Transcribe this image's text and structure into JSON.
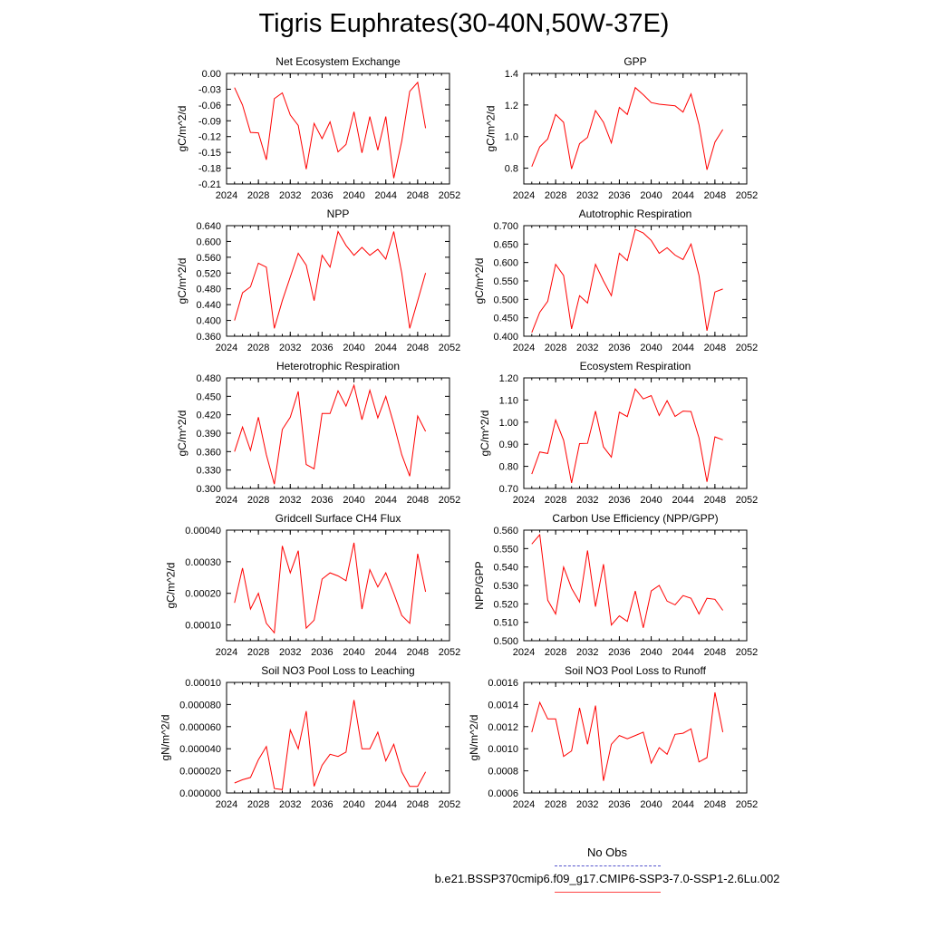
{
  "title": "Tigris Euphrates(30-40N,50W-37E)",
  "legend": {
    "obs_label": "No Obs",
    "run_label": "b.e21.BSSP370cmip6.f09_g17.CMIP6-SSP3-7.0-SSP1-2.6Lu.002",
    "obs_color": "#5555cc",
    "run_color": "#ff0000"
  },
  "chart_data": [
    {
      "type": "line",
      "title": "Net Ecosystem Exchange",
      "ylabel": "gC/m^2/d",
      "xlim": [
        2024,
        2052
      ],
      "ylim": [
        -0.21,
        0.0
      ],
      "xticks": [
        "2024",
        "2028",
        "2032",
        "2036",
        "2040",
        "2044",
        "2048",
        "2052"
      ],
      "yticks": [
        "0.00",
        "-0.03",
        "-0.06",
        "-0.09",
        "-0.12",
        "-0.15",
        "-0.18",
        "-0.21"
      ],
      "x": [
        2025,
        2026,
        2027,
        2028,
        2029,
        2030,
        2031,
        2032,
        2033,
        2034,
        2035,
        2036,
        2037,
        2038,
        2039,
        2040,
        2041,
        2042,
        2043,
        2044,
        2045,
        2046,
        2047,
        2048,
        2049
      ],
      "series": [
        {
          "values": [
            -0.027,
            -0.06,
            -0.112,
            -0.113,
            -0.164,
            -0.048,
            -0.037,
            -0.079,
            -0.099,
            -0.182,
            -0.095,
            -0.124,
            -0.092,
            -0.149,
            -0.135,
            -0.073,
            -0.151,
            -0.082,
            -0.146,
            -0.082,
            -0.199,
            -0.129,
            -0.034,
            -0.017,
            -0.104
          ]
        }
      ]
    },
    {
      "type": "line",
      "title": "GPP",
      "ylabel": "gC/m^2/d",
      "xlim": [
        2024,
        2052
      ],
      "ylim": [
        0.7,
        1.4
      ],
      "xticks": [
        "2024",
        "2028",
        "2032",
        "2036",
        "2040",
        "2044",
        "2048",
        "2052"
      ],
      "yticks": [
        "1.4",
        "1.2",
        "1.0",
        "0.8"
      ],
      "x": [
        2025,
        2026,
        2027,
        2028,
        2029,
        2030,
        2031,
        2032,
        2033,
        2034,
        2035,
        2036,
        2037,
        2038,
        2039,
        2040,
        2041,
        2042,
        2043,
        2044,
        2045,
        2046,
        2047,
        2048,
        2049
      ],
      "series": [
        {
          "values": [
            0.81,
            0.935,
            0.985,
            1.14,
            1.09,
            0.795,
            0.955,
            0.995,
            1.165,
            1.09,
            0.96,
            1.185,
            1.14,
            1.31,
            1.265,
            1.215,
            1.205,
            1.2,
            1.195,
            1.155,
            1.27,
            1.075,
            0.79,
            0.965,
            1.045
          ]
        }
      ]
    },
    {
      "type": "line",
      "title": "NPP",
      "ylabel": "gC/m^2/d",
      "xlim": [
        2024,
        2052
      ],
      "ylim": [
        0.36,
        0.64
      ],
      "xticks": [
        "2024",
        "2028",
        "2032",
        "2036",
        "2040",
        "2044",
        "2048",
        "2052"
      ],
      "yticks": [
        "0.640",
        "0.600",
        "0.560",
        "0.520",
        "0.480",
        "0.440",
        "0.400",
        "0.360"
      ],
      "x": [
        2025,
        2026,
        2027,
        2028,
        2029,
        2030,
        2031,
        2032,
        2033,
        2034,
        2035,
        2036,
        2037,
        2038,
        2039,
        2040,
        2041,
        2042,
        2043,
        2044,
        2045,
        2046,
        2047,
        2048,
        2049
      ],
      "series": [
        {
          "values": [
            0.4,
            0.47,
            0.485,
            0.545,
            0.535,
            0.38,
            0.45,
            0.51,
            0.57,
            0.54,
            0.45,
            0.565,
            0.535,
            0.625,
            0.59,
            0.565,
            0.585,
            0.565,
            0.58,
            0.555,
            0.625,
            0.52,
            0.38,
            0.45,
            0.52
          ]
        }
      ]
    },
    {
      "type": "line",
      "title": "Autotrophic Respiration",
      "ylabel": "gC/m^2/d",
      "xlim": [
        2024,
        2052
      ],
      "ylim": [
        0.4,
        0.7
      ],
      "xticks": [
        "2024",
        "2028",
        "2032",
        "2036",
        "2040",
        "2044",
        "2048",
        "2052"
      ],
      "yticks": [
        "0.700",
        "0.650",
        "0.600",
        "0.550",
        "0.500",
        "0.450",
        "0.400"
      ],
      "x": [
        2025,
        2026,
        2027,
        2028,
        2029,
        2030,
        2031,
        2032,
        2033,
        2034,
        2035,
        2036,
        2037,
        2038,
        2039,
        2040,
        2041,
        2042,
        2043,
        2044,
        2045,
        2046,
        2047,
        2048,
        2049
      ],
      "series": [
        {
          "values": [
            0.41,
            0.465,
            0.495,
            0.595,
            0.565,
            0.42,
            0.51,
            0.49,
            0.595,
            0.55,
            0.51,
            0.625,
            0.605,
            0.69,
            0.68,
            0.66,
            0.625,
            0.64,
            0.62,
            0.608,
            0.65,
            0.565,
            0.415,
            0.52,
            0.528
          ]
        }
      ]
    },
    {
      "type": "line",
      "title": "Heterotrophic Respiration",
      "ylabel": "gC/m^2/d",
      "xlim": [
        2024,
        2052
      ],
      "ylim": [
        0.3,
        0.48
      ],
      "xticks": [
        "2024",
        "2028",
        "2032",
        "2036",
        "2040",
        "2044",
        "2048",
        "2052"
      ],
      "yticks": [
        "0.480",
        "0.450",
        "0.420",
        "0.390",
        "0.360",
        "0.330",
        "0.300"
      ],
      "x": [
        2025,
        2026,
        2027,
        2028,
        2029,
        2030,
        2031,
        2032,
        2033,
        2034,
        2035,
        2036,
        2037,
        2038,
        2039,
        2040,
        2041,
        2042,
        2043,
        2044,
        2045,
        2046,
        2047,
        2048,
        2049
      ],
      "series": [
        {
          "values": [
            0.36,
            0.4,
            0.362,
            0.416,
            0.355,
            0.307,
            0.396,
            0.416,
            0.458,
            0.339,
            0.332,
            0.422,
            0.422,
            0.459,
            0.434,
            0.468,
            0.412,
            0.46,
            0.415,
            0.45,
            0.405,
            0.355,
            0.32,
            0.418,
            0.393
          ]
        }
      ]
    },
    {
      "type": "line",
      "title": "Ecosystem Respiration",
      "ylabel": "gC/m^2/d",
      "xlim": [
        2024,
        2052
      ],
      "ylim": [
        0.7,
        1.2
      ],
      "xticks": [
        "2024",
        "2028",
        "2032",
        "2036",
        "2040",
        "2044",
        "2048",
        "2052"
      ],
      "yticks": [
        "1.20",
        "1.10",
        "1.00",
        "0.90",
        "0.80",
        "0.70"
      ],
      "x": [
        2025,
        2026,
        2027,
        2028,
        2029,
        2030,
        2031,
        2032,
        2033,
        2034,
        2035,
        2036,
        2037,
        2038,
        2039,
        2040,
        2041,
        2042,
        2043,
        2044,
        2045,
        2046,
        2047,
        2048,
        2049
      ],
      "series": [
        {
          "values": [
            0.765,
            0.865,
            0.858,
            1.01,
            0.918,
            0.725,
            0.903,
            0.904,
            1.05,
            0.888,
            0.842,
            1.045,
            1.025,
            1.15,
            1.105,
            1.12,
            1.03,
            1.097,
            1.026,
            1.05,
            1.048,
            0.929,
            0.73,
            0.933,
            0.92
          ]
        }
      ]
    },
    {
      "type": "line",
      "title": "Gridcell Surface CH4 Flux",
      "ylabel": "gC/m^2/d",
      "xlim": [
        2024,
        2052
      ],
      "ylim": [
        5e-05,
        0.0004
      ],
      "xticks": [
        "2024",
        "2028",
        "2032",
        "2036",
        "2040",
        "2044",
        "2048",
        "2052"
      ],
      "yticks": [
        "0.00040",
        "0.00030",
        "0.00020",
        "0.00010"
      ],
      "x": [
        2025,
        2026,
        2027,
        2028,
        2029,
        2030,
        2031,
        2032,
        2033,
        2034,
        2035,
        2036,
        2037,
        2038,
        2039,
        2040,
        2041,
        2042,
        2043,
        2044,
        2045,
        2046,
        2047,
        2048,
        2049
      ],
      "series": [
        {
          "values": [
            0.00017,
            0.00028,
            0.00015,
            0.0002,
            0.000105,
            7.5e-05,
            0.00035,
            0.000265,
            0.000335,
            9e-05,
            0.000115,
            0.000245,
            0.000265,
            0.000255,
            0.00024,
            0.00036,
            0.00015,
            0.000275,
            0.00022,
            0.000265,
            0.0002,
            0.00013,
            0.000105,
            0.000325,
            0.000205
          ]
        }
      ]
    },
    {
      "type": "line",
      "title": "Carbon Use Efficiency (NPP/GPP)",
      "ylabel": "NPP/GPP",
      "xlim": [
        2024,
        2052
      ],
      "ylim": [
        0.5,
        0.56
      ],
      "xticks": [
        "2024",
        "2028",
        "2032",
        "2036",
        "2040",
        "2044",
        "2048",
        "2052"
      ],
      "yticks": [
        "0.560",
        "0.550",
        "0.540",
        "0.530",
        "0.520",
        "0.510",
        "0.500"
      ],
      "x": [
        2025,
        2026,
        2027,
        2028,
        2029,
        2030,
        2031,
        2032,
        2033,
        2034,
        2035,
        2036,
        2037,
        2038,
        2039,
        2040,
        2041,
        2042,
        2043,
        2044,
        2045,
        2046,
        2047,
        2048,
        2049
      ],
      "series": [
        {
          "values": [
            0.5525,
            0.5575,
            0.522,
            0.5145,
            0.54,
            0.5285,
            0.521,
            0.549,
            0.5185,
            0.5415,
            0.5085,
            0.5135,
            0.5105,
            0.527,
            0.507,
            0.527,
            0.53,
            0.5215,
            0.5195,
            0.5245,
            0.523,
            0.5145,
            0.523,
            0.5225,
            0.5165
          ]
        }
      ]
    },
    {
      "type": "line",
      "title": "Soil NO3 Pool Loss to Leaching",
      "ylabel": "gN/m^2/d",
      "xlim": [
        2024,
        2052
      ],
      "ylim": [
        0.0,
        0.0001
      ],
      "xticks": [
        "2024",
        "2028",
        "2032",
        "2036",
        "2040",
        "2044",
        "2048",
        "2052"
      ],
      "yticks": [
        "0.00010",
        "0.000080",
        "0.000060",
        "0.000040",
        "0.000020",
        "0.000000"
      ],
      "x": [
        2025,
        2026,
        2027,
        2028,
        2029,
        2030,
        2031,
        2032,
        2033,
        2034,
        2035,
        2036,
        2037,
        2038,
        2039,
        2040,
        2041,
        2042,
        2043,
        2044,
        2045,
        2046,
        2047,
        2048,
        2049
      ],
      "series": [
        {
          "values": [
            9e-06,
            1.2e-05,
            1.4e-05,
            3e-05,
            4.2e-05,
            4e-06,
            3e-06,
            5.7e-05,
            4e-05,
            7.4e-05,
            6e-06,
            2.5e-05,
            3.5e-05,
            3.3e-05,
            3.7e-05,
            8.4e-05,
            4e-05,
            4e-05,
            5.5e-05,
            2.9e-05,
            4.4e-05,
            1.9e-05,
            6e-06,
            6e-06,
            1.9e-05
          ]
        }
      ]
    },
    {
      "type": "line",
      "title": "Soil NO3 Pool Loss to Runoff",
      "ylabel": "gN/m^2/d",
      "xlim": [
        2024,
        2052
      ],
      "ylim": [
        0.0006,
        0.0016
      ],
      "xticks": [
        "2024",
        "2028",
        "2032",
        "2036",
        "2040",
        "2044",
        "2048",
        "2052"
      ],
      "yticks": [
        "0.0016",
        "0.0014",
        "0.0012",
        "0.0010",
        "0.0008",
        "0.0006"
      ],
      "x": [
        2025,
        2026,
        2027,
        2028,
        2029,
        2030,
        2031,
        2032,
        2033,
        2034,
        2035,
        2036,
        2037,
        2038,
        2039,
        2040,
        2041,
        2042,
        2043,
        2044,
        2045,
        2046,
        2047,
        2048,
        2049
      ],
      "series": [
        {
          "values": [
            0.00115,
            0.00142,
            0.00127,
            0.00127,
            0.00093,
            0.00098,
            0.00137,
            0.00104,
            0.00139,
            0.00071,
            0.00104,
            0.00112,
            0.00109,
            0.00112,
            0.00115,
            0.00087,
            0.00101,
            0.00095,
            0.00113,
            0.00114,
            0.00118,
            0.00088,
            0.00092,
            0.00151,
            0.00115
          ]
        }
      ]
    }
  ]
}
